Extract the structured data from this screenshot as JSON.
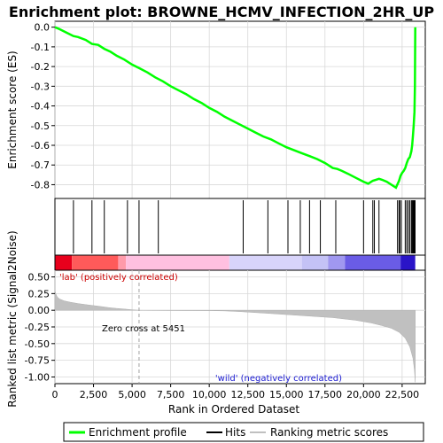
{
  "chart_data": {
    "type": "line",
    "title": "Enrichment plot: BROWNE_HCMV_INFECTION_2HR_UP",
    "xlabel": "Rank in Ordered Dataset",
    "top_panel": {
      "ylabel": "Enrichment score (ES)",
      "xlim": [
        0,
        24000
      ],
      "ylim": [
        -0.87,
        0.03
      ],
      "yticks": [
        0.0,
        -0.1,
        -0.2,
        -0.3,
        -0.4,
        -0.5,
        -0.6,
        -0.7,
        -0.8
      ],
      "ytick_labels": [
        "0.0",
        "-0.1",
        "-0.2",
        "-0.3",
        "-0.4",
        "-0.5",
        "-0.6",
        "-0.7",
        "-0.8"
      ],
      "series": [
        {
          "name": "Enrichment profile",
          "color": "#00ff00",
          "x": [
            0,
            300,
            800,
            1200,
            1500,
            2000,
            2400,
            2800,
            3200,
            3600,
            4000,
            4500,
            5000,
            5500,
            6000,
            6500,
            7000,
            7500,
            8000,
            8500,
            9000,
            9500,
            10000,
            10500,
            11000,
            11500,
            12000,
            12500,
            13000,
            13500,
            14000,
            14500,
            15000,
            15500,
            16000,
            16500,
            17000,
            17500,
            18000,
            18300,
            18600,
            19000,
            19500,
            20000,
            20300,
            20600,
            20800,
            21000,
            21200,
            21500,
            21800,
            22100,
            22300,
            22400,
            22500,
            22600,
            22700,
            22800,
            22900,
            23000,
            23100,
            23150,
            23200,
            23250,
            23300,
            23330,
            23340,
            23350
          ],
          "y": [
            0.0,
            -0.01,
            -0.03,
            -0.045,
            -0.05,
            -0.065,
            -0.085,
            -0.09,
            -0.11,
            -0.125,
            -0.145,
            -0.165,
            -0.19,
            -0.21,
            -0.23,
            -0.255,
            -0.275,
            -0.3,
            -0.32,
            -0.34,
            -0.365,
            -0.385,
            -0.41,
            -0.43,
            -0.455,
            -0.475,
            -0.495,
            -0.515,
            -0.535,
            -0.555,
            -0.57,
            -0.59,
            -0.61,
            -0.625,
            -0.64,
            -0.655,
            -0.67,
            -0.69,
            -0.715,
            -0.72,
            -0.73,
            -0.745,
            -0.765,
            -0.785,
            -0.795,
            -0.78,
            -0.775,
            -0.77,
            -0.775,
            -0.785,
            -0.8,
            -0.815,
            -0.78,
            -0.755,
            -0.74,
            -0.73,
            -0.715,
            -0.69,
            -0.67,
            -0.66,
            -0.63,
            -0.6,
            -0.55,
            -0.5,
            -0.43,
            -0.3,
            -0.15,
            0.0
          ]
        }
      ],
      "hits_label": "Hits",
      "hits": [
        1200,
        2400,
        3200,
        4700,
        5450,
        6700,
        12200,
        13800,
        15100,
        15900,
        16500,
        17200,
        18200,
        20000,
        20600,
        20700,
        21000,
        22200,
        22300,
        22350,
        22450,
        22700,
        22800,
        22900,
        23000,
        23100,
        23150,
        23200,
        23250,
        23280,
        23310,
        23340
      ]
    },
    "rank_bar": {
      "left_label": "'lab' (positively correlated)",
      "right_label": "'wild' (negatively correlated)",
      "segments": [
        {
          "from": 0,
          "to": 1100,
          "color": "#e8001c"
        },
        {
          "from": 1100,
          "to": 4100,
          "color": "#ff5a5a"
        },
        {
          "from": 4100,
          "to": 4600,
          "color": "#ff9aaa"
        },
        {
          "from": 4600,
          "to": 11300,
          "color": "#ffc0e0"
        },
        {
          "from": 11300,
          "to": 16000,
          "color": "#d8d4fa"
        },
        {
          "from": 16000,
          "to": 17700,
          "color": "#c4c2f6"
        },
        {
          "from": 17700,
          "to": 18800,
          "color": "#a098f0"
        },
        {
          "from": 18800,
          "to": 22400,
          "color": "#6a5ce6"
        },
        {
          "from": 22400,
          "to": 23350,
          "color": "#2a14c8"
        }
      ]
    },
    "bottom_panel": {
      "ylabel": "Ranked list metric (Signal2Noise)",
      "ylim": [
        -1.1,
        0.6
      ],
      "yticks": [
        0.5,
        0.25,
        0.0,
        -0.25,
        -0.5,
        -0.75,
        -1.0
      ],
      "ytick_labels": [
        "0.50",
        "0.25",
        "0.00",
        "-0.25",
        "-0.50",
        "-0.75",
        "-1.00"
      ],
      "zero_cross_label": "Zero cross at 5451",
      "zero_cross": 5451,
      "series": [
        {
          "name": "Ranking metric scores",
          "color": "#c0c0c0",
          "x": [
            0,
            50,
            150,
            300,
            600,
            1000,
            1500,
            2000,
            2500,
            3000,
            3500,
            4000,
            4500,
            5000,
            5451,
            6000,
            8000,
            10000,
            11000,
            12000,
            14000,
            16000,
            18000,
            19500,
            20500,
            21200,
            21800,
            22300,
            22700,
            23000,
            23200,
            23300,
            23350
          ],
          "y": [
            0.3,
            0.25,
            0.2,
            0.17,
            0.14,
            0.12,
            0.1,
            0.085,
            0.07,
            0.055,
            0.04,
            0.028,
            0.018,
            0.008,
            0.0,
            -0.002,
            -0.004,
            -0.006,
            -0.01,
            -0.02,
            -0.05,
            -0.08,
            -0.11,
            -0.15,
            -0.19,
            -0.23,
            -0.27,
            -0.33,
            -0.42,
            -0.55,
            -0.72,
            -0.9,
            -1.08
          ]
        }
      ]
    },
    "xticks": [
      0,
      2500,
      5000,
      7500,
      10000,
      12500,
      15000,
      17500,
      20000,
      22500
    ],
    "xtick_labels": [
      "0",
      "2,500",
      "5,000",
      "7,500",
      "10,000",
      "12,500",
      "15,000",
      "17,500",
      "20,000",
      "22,500"
    ],
    "legend": {
      "placement": "bottom",
      "entries": [
        {
          "label": "Enrichment profile",
          "color": "#00ff00"
        },
        {
          "label": "Hits",
          "color": "#000000"
        },
        {
          "label": "Ranking metric scores",
          "color": "#c0c0c0"
        }
      ]
    }
  }
}
